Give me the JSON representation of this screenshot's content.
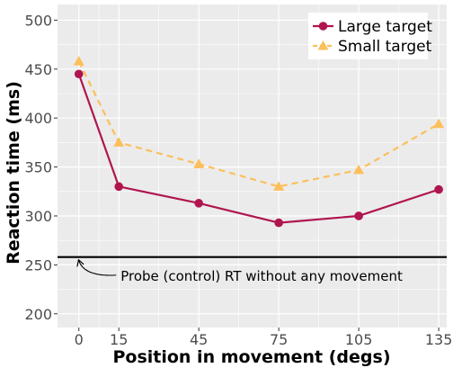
{
  "chart_data": {
    "type": "line",
    "xlabel": "Position in movement (degs)",
    "ylabel": "Reaction time (ms)",
    "x": [
      0,
      15,
      45,
      75,
      105,
      135
    ],
    "xticks": [
      0,
      15,
      45,
      75,
      105,
      135
    ],
    "xlim": [
      -8,
      138
    ],
    "yticks": [
      200,
      250,
      300,
      350,
      400,
      450,
      500
    ],
    "ylim": [
      186,
      516
    ],
    "grid": true,
    "legend_position": "top-right",
    "series": [
      {
        "name": "Large target",
        "values": [
          445,
          330,
          313,
          293,
          300,
          327
        ],
        "color": "#b0154f",
        "line": "solid",
        "marker": "circle"
      },
      {
        "name": "Small target",
        "values": [
          458,
          375,
          353,
          330,
          347,
          394
        ],
        "color": "#fcbf5b",
        "line": "dashed",
        "marker": "triangle"
      }
    ],
    "reference_line": {
      "y": 258,
      "color": "#000000",
      "annotation": "Probe (control) RT without any movement",
      "annotation_point": [
        0,
        258
      ],
      "annotation_text_position": [
        15,
        234
      ]
    },
    "panel_background": "#ebebeb",
    "grid_color": "#ffffff"
  }
}
